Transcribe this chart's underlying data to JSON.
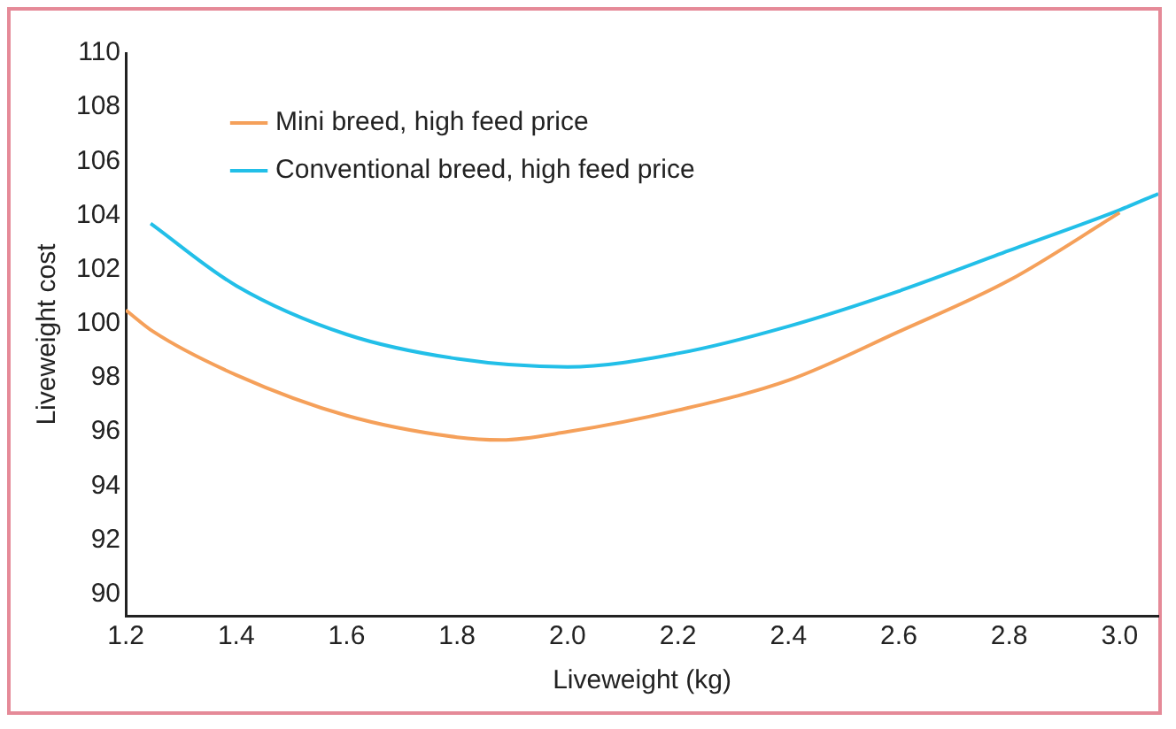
{
  "chart_data": {
    "type": "line",
    "xlabel": "Liveweight (kg)",
    "ylabel": "Liveweight cost",
    "xlim": [
      1.2,
      3.07
    ],
    "xticks": [
      {
        "value": 1.2,
        "label": "1.2"
      },
      1.4,
      1.6,
      1.8,
      {
        "value": 2,
        "label": "2.0"
      },
      2.2,
      2.4,
      2.6,
      2.8,
      {
        "value": 3,
        "label": "3.0"
      }
    ],
    "ylim": [
      89.2,
      110
    ],
    "yticks": [
      90,
      92,
      94,
      96,
      98,
      100,
      102,
      104,
      106,
      108,
      110
    ],
    "grid": false,
    "legend": "top left",
    "marker": "none",
    "line_style": "solid",
    "series": [
      {
        "name": "Mini breed, high feed price",
        "color": "#f5a05a",
        "x": [
          1.2,
          1.25,
          1.4,
          1.6,
          1.8,
          1.88,
          2.0,
          2.2,
          2.4,
          2.6,
          2.8,
          3.0
        ],
        "values": [
          100.5,
          99.7,
          98.1,
          96.6,
          95.8,
          95.7,
          96.0,
          96.8,
          97.9,
          99.7,
          101.6,
          104.1
        ]
      },
      {
        "name": "Conventional breed, high feed price",
        "color": "#22bfe8",
        "x": [
          1.245,
          1.4,
          1.6,
          1.8,
          2.0,
          2.2,
          2.4,
          2.6,
          2.8,
          3.0,
          3.07
        ],
        "values": [
          103.7,
          101.4,
          99.6,
          98.7,
          98.4,
          98.9,
          99.9,
          101.2,
          102.7,
          104.2,
          104.8
        ]
      }
    ]
  }
}
